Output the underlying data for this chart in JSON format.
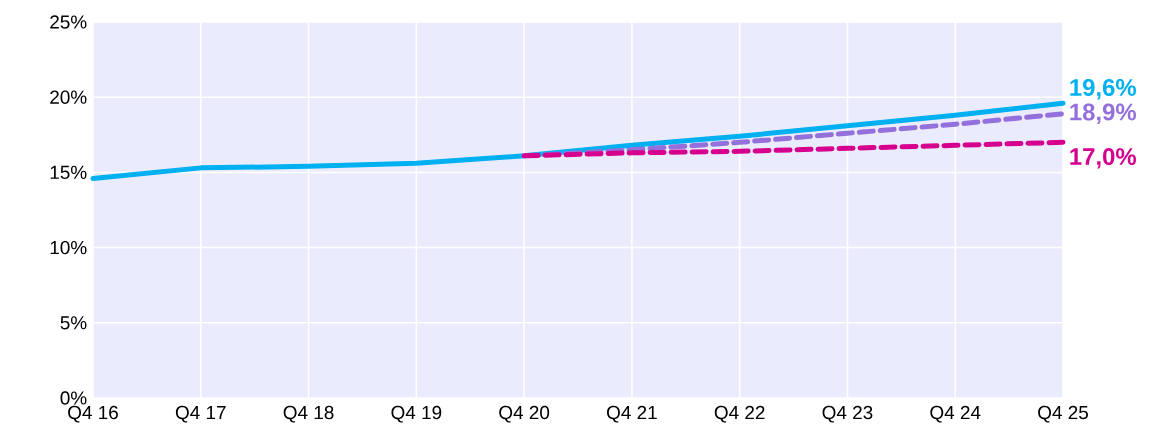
{
  "chart_data": {
    "type": "line",
    "categories": [
      "Q4 16",
      "Q4 17",
      "Q4 18",
      "Q4 19",
      "Q4 20",
      "Q4 21",
      "Q4 22",
      "Q4 23",
      "Q4 24",
      "Q4 25"
    ],
    "series": [
      {
        "color": "#00b0f0",
        "line_style": "solid",
        "values": [
          14.6,
          15.3,
          15.4,
          15.6,
          16.1,
          16.8,
          17.4,
          18.1,
          18.8,
          19.6
        ],
        "value_labels": [
          null,
          null,
          null,
          null,
          null,
          null,
          null,
          null,
          null,
          "19,6%"
        ]
      },
      {
        "color": "#9370db",
        "line_style": "dashed",
        "values": [
          null,
          null,
          null,
          null,
          16.1,
          16.5,
          17.0,
          17.6,
          18.2,
          18.9
        ],
        "value_labels": [
          null,
          null,
          null,
          null,
          null,
          null,
          null,
          null,
          null,
          "18,9%"
        ]
      },
      {
        "color": "#d6008f",
        "line_style": "dashed",
        "values": [
          null,
          null,
          null,
          null,
          16.1,
          16.3,
          16.4,
          16.6,
          16.8,
          17.0
        ],
        "value_labels": [
          null,
          null,
          null,
          null,
          null,
          null,
          null,
          null,
          null,
          "17,0%"
        ]
      }
    ],
    "ylim": [
      0,
      25
    ],
    "yticks": [
      {
        "value": 0,
        "label": "0%"
      },
      {
        "value": 5,
        "label": "5%"
      },
      {
        "value": 10,
        "label": "10%"
      },
      {
        "value": 15,
        "label": "15%"
      },
      {
        "value": 20,
        "label": "20%"
      },
      {
        "value": 25,
        "label": "25%"
      }
    ],
    "grid": true
  }
}
